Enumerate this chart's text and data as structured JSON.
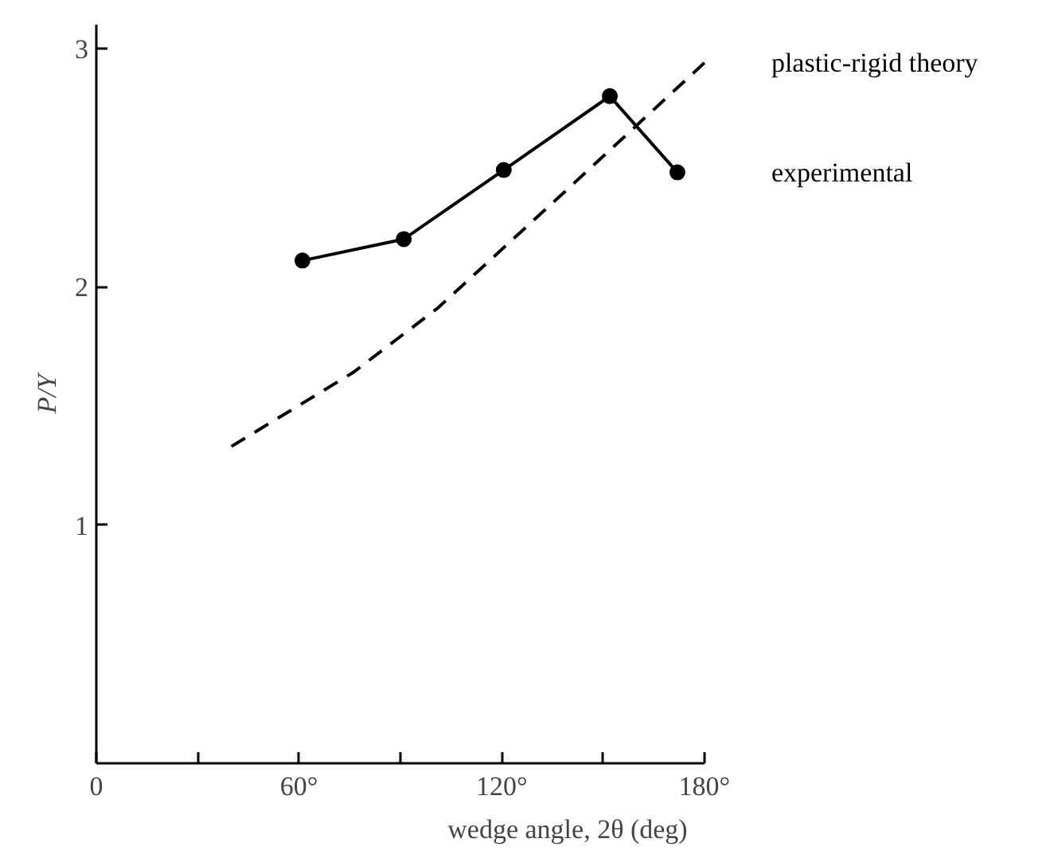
{
  "chart_data": {
    "type": "line",
    "xlabel": "wedge angle, 2θ (deg)",
    "ylabel": "P/Y",
    "xlim": [
      0,
      180
    ],
    "ylim": [
      0,
      3.1
    ],
    "xticks": [
      0,
      {
        "value": 30,
        "label": null
      },
      {
        "value": 60,
        "label": "60°"
      },
      {
        "value": 90,
        "label": null
      },
      {
        "value": 120,
        "label": "120°"
      },
      {
        "value": 150,
        "label": null
      },
      {
        "value": 180,
        "label": "180°"
      }
    ],
    "yticks": [
      1,
      2,
      3
    ],
    "grid": false,
    "series": [
      {
        "name": "plastic-rigid theory",
        "color": "#000000",
        "line_style": "dashed",
        "marker": "none",
        "x": [
          40,
          76,
          101,
          138,
          180
        ],
        "values": [
          1.33,
          1.64,
          1.91,
          2.39,
          2.94
        ]
      },
      {
        "name": "experimental",
        "color": "#000000",
        "line_style": "solid",
        "marker": "circle",
        "x": [
          61,
          91,
          120.6,
          152,
          172
        ],
        "values": [
          2.11,
          2.2,
          2.49,
          2.8,
          2.48
        ]
      }
    ]
  }
}
